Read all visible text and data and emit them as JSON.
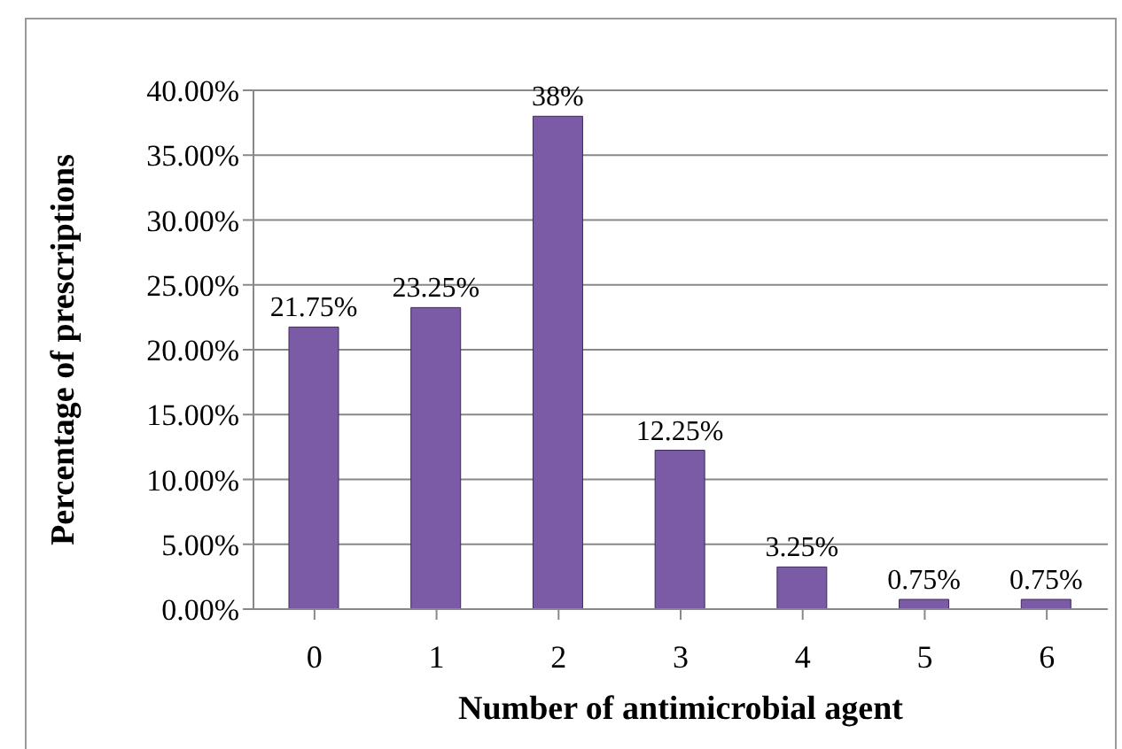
{
  "chart_data": {
    "type": "bar",
    "xlabel": "Number of antimicrobial agent",
    "ylabel": "Percentage of prescriptions",
    "categories": [
      "0",
      "1",
      "2",
      "3",
      "4",
      "5",
      "6"
    ],
    "values": [
      21.75,
      23.25,
      38,
      12.25,
      3.25,
      0.75,
      0.75
    ],
    "value_labels": [
      "21.75%",
      "23.25%",
      "38%",
      "12.25%",
      "3.25%",
      "0.75%",
      "0.75%"
    ],
    "color": "#7b5aa6",
    "ylim": [
      0,
      40
    ],
    "yticks": [
      {
        "value": 0,
        "label": "0.00%"
      },
      {
        "value": 5,
        "label": "5.00%"
      },
      {
        "value": 10,
        "label": "10.00%"
      },
      {
        "value": 15,
        "label": "15.00%"
      },
      {
        "value": 20,
        "label": "20.00%"
      },
      {
        "value": 25,
        "label": "25.00%"
      },
      {
        "value": 30,
        "label": "30.00%"
      },
      {
        "value": 35,
        "label": "35.00%"
      },
      {
        "value": 40,
        "label": "40.00%"
      }
    ],
    "grid": "y"
  }
}
